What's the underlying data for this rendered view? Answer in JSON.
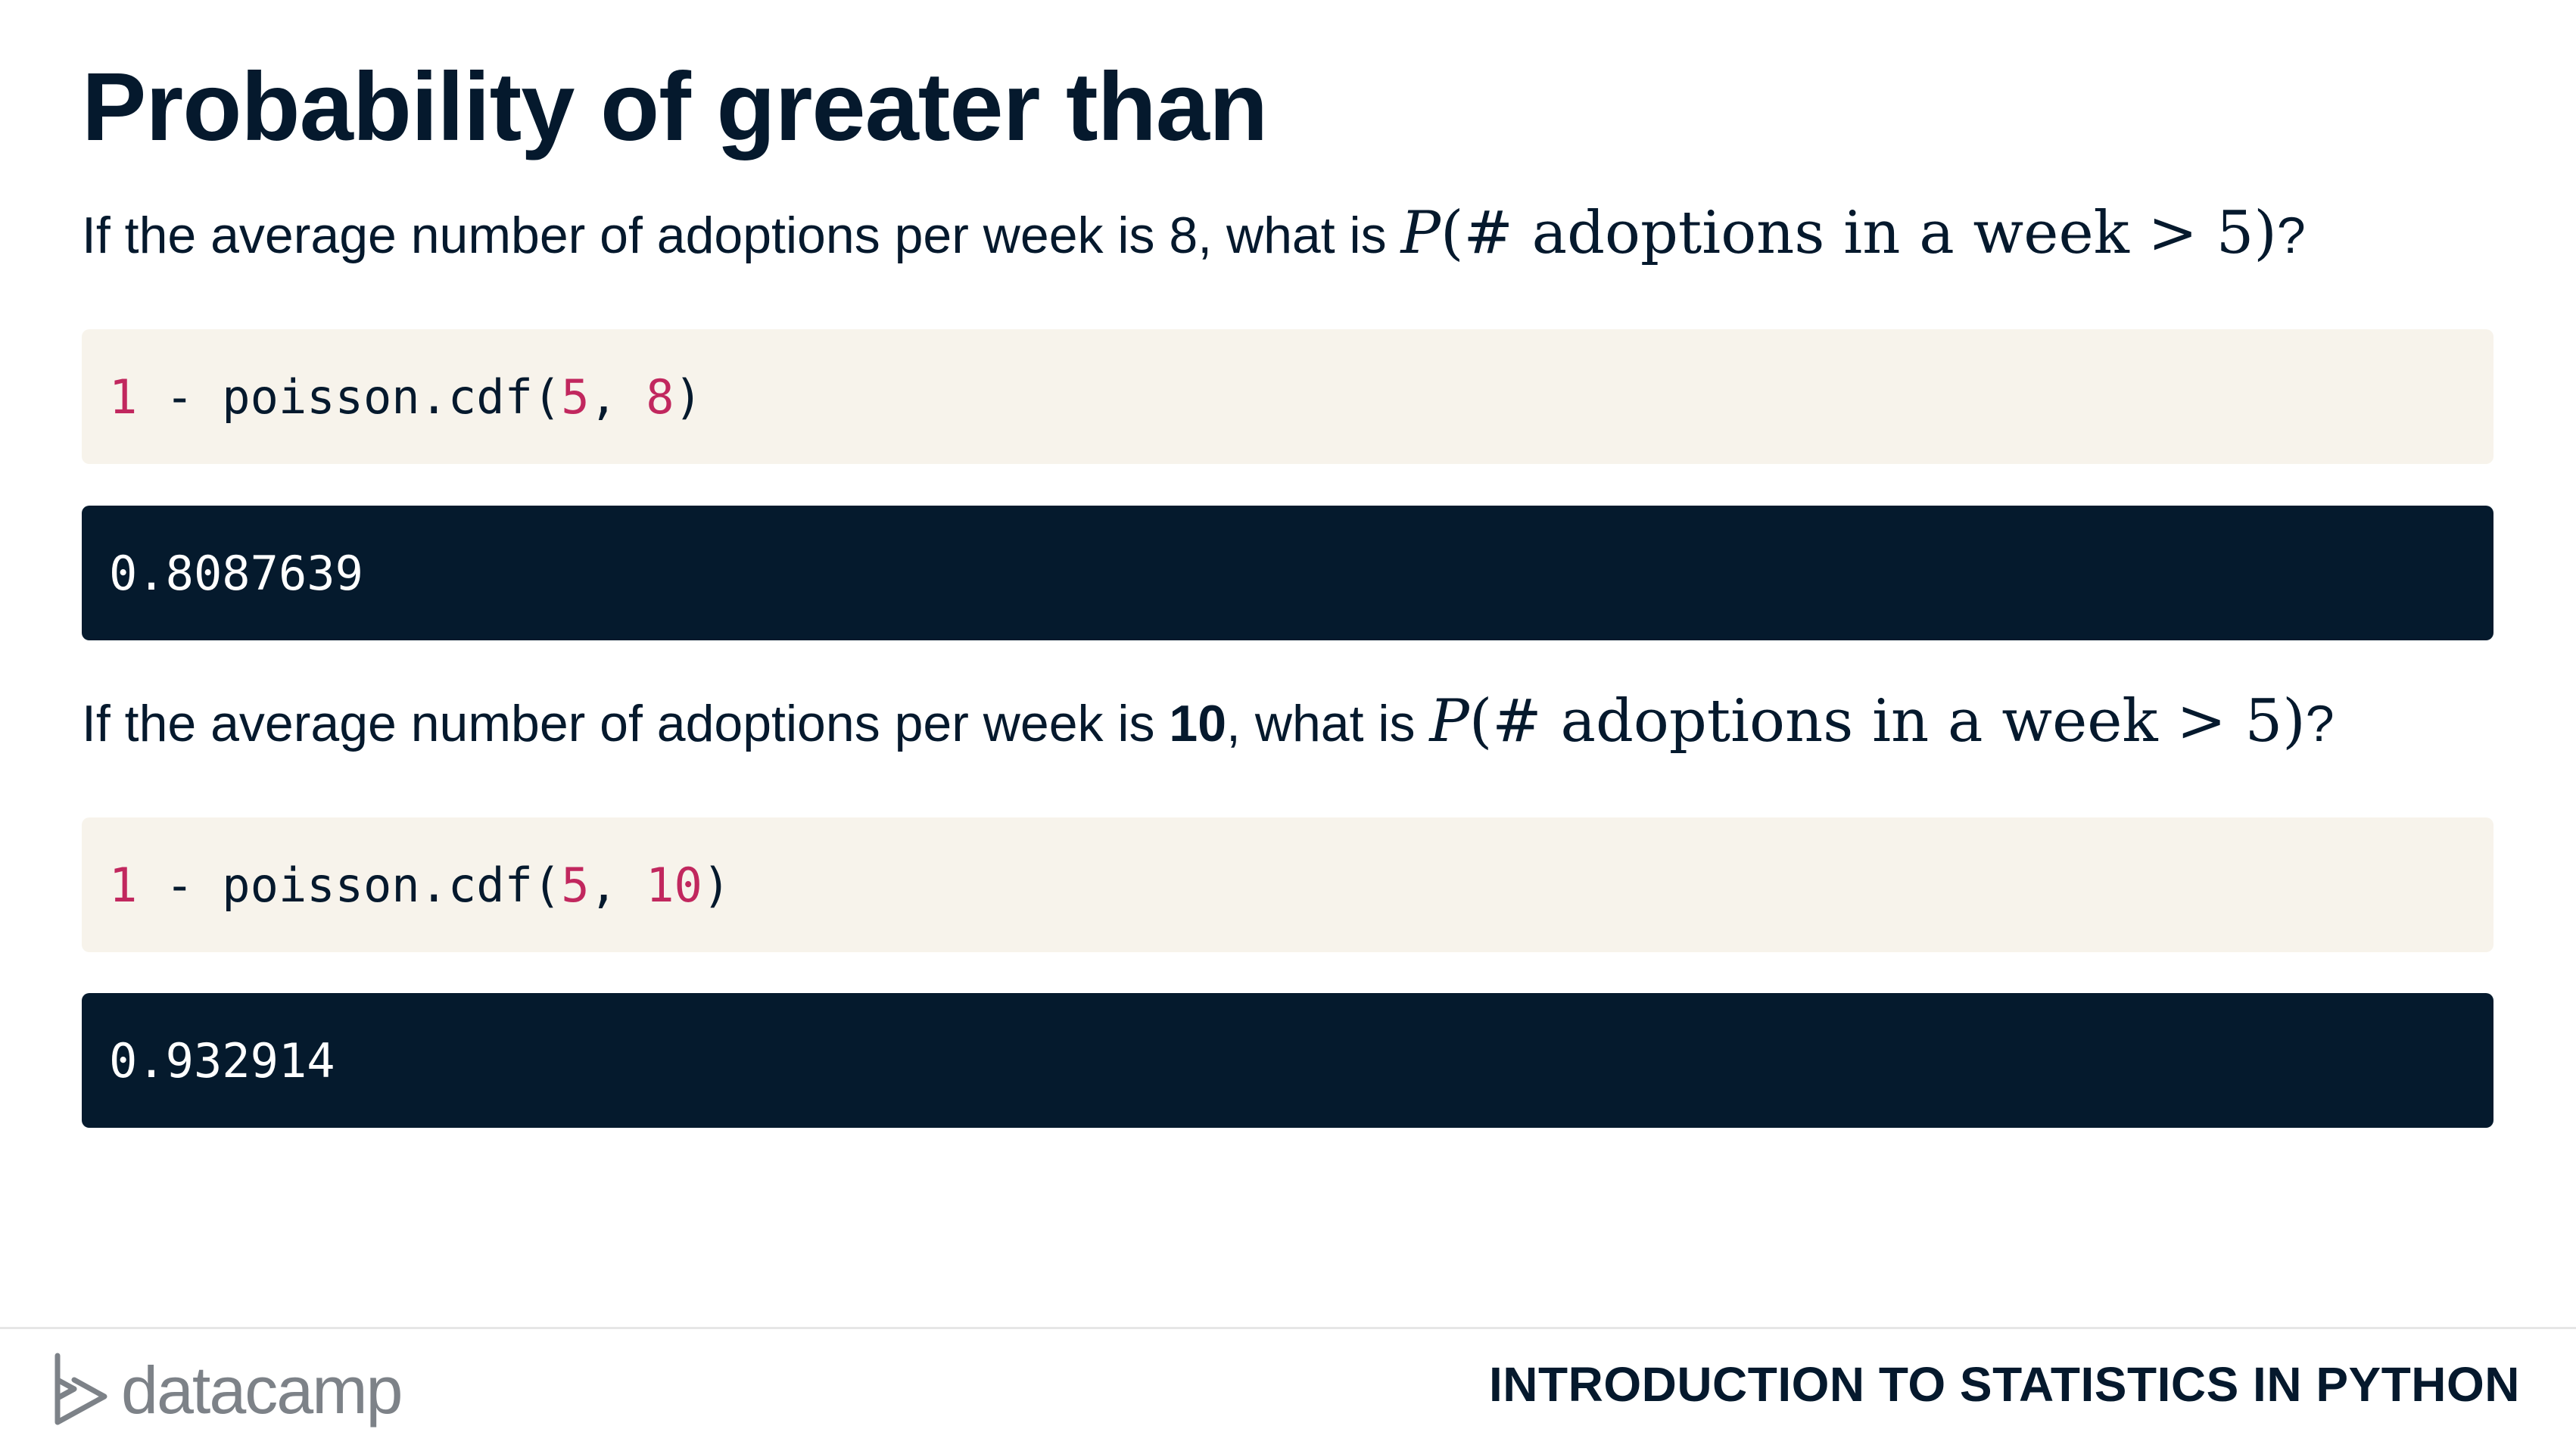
{
  "title": "Probability of greater than",
  "question1": {
    "prefix": "If the average number of adoptions per week is 8, what is ",
    "math_var": "P",
    "math_rest": "(# adoptions in a week > 5)",
    "suffix": "?"
  },
  "code1": {
    "a": "1",
    "op": " - poisson.cdf(",
    "k": "5",
    "sep": ", ",
    "mu": "8",
    "close": ")"
  },
  "output1": "0.8087639",
  "question2": {
    "prefix": "If the average number of adoptions per week is ",
    "bold": "10",
    "mid": ", what is ",
    "math_var": "P",
    "math_rest": "(# adoptions in a week > 5)",
    "suffix": "?"
  },
  "code2": {
    "a": "1",
    "op": " - poisson.cdf(",
    "k": "5",
    "sep": ", ",
    "mu": "10",
    "close": ")"
  },
  "output2": "0.932914",
  "footer": {
    "logo_text": "datacamp",
    "course": "INTRODUCTION TO STATISTICS IN PYTHON"
  },
  "colors": {
    "code_background": "#f7f3eb",
    "output_background": "#051a2d",
    "number_literal": "#c1275e",
    "text": "#05192d"
  }
}
